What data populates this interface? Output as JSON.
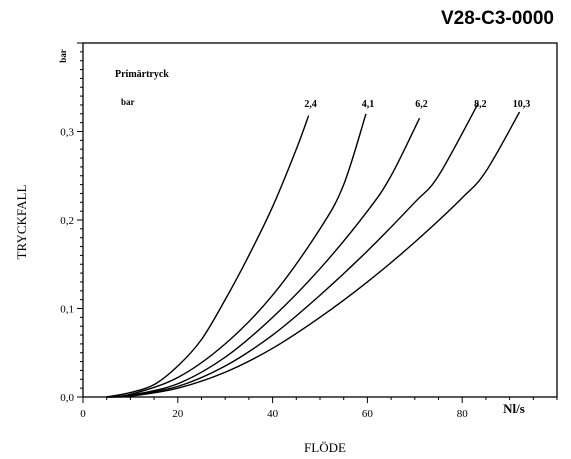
{
  "chart_data": {
    "type": "line",
    "code": "V28-C3-0000",
    "xlabel": "FLÖDE",
    "x_unit": "Nl/s",
    "ylabel": "TRYCKFALL",
    "y_unit": "bar",
    "legend_title": "Primärtryck",
    "legend_unit": "bar",
    "xlim": [
      0,
      100
    ],
    "ylim": [
      0,
      0.4
    ],
    "x_ticks": [
      0,
      20,
      40,
      60,
      80
    ],
    "x_tick_labels": [
      "0",
      "20",
      "40",
      "60",
      "80"
    ],
    "y_ticks": [
      0.0,
      0.1,
      0.2,
      0.3
    ],
    "y_tick_labels": [
      "0,0",
      "0,1",
      "0,2",
      "0,3"
    ],
    "grid": false,
    "series": [
      {
        "name": "2,4",
        "x": [
          5,
          10,
          15,
          20,
          25,
          30,
          35,
          40,
          45,
          47.6
        ],
        "y": [
          0,
          0.005,
          0.014,
          0.035,
          0.065,
          0.11,
          0.16,
          0.215,
          0.28,
          0.318
        ]
      },
      {
        "name": "4,1",
        "x": [
          5,
          10,
          20,
          30,
          40,
          50,
          55,
          59.7
        ],
        "y": [
          0,
          0.003,
          0.022,
          0.06,
          0.115,
          0.19,
          0.24,
          0.32
        ]
      },
      {
        "name": "6,2",
        "x": [
          5,
          10,
          20,
          30,
          40,
          50,
          60,
          65,
          71
        ],
        "y": [
          0,
          0.002,
          0.015,
          0.045,
          0.09,
          0.145,
          0.21,
          0.25,
          0.315
        ]
      },
      {
        "name": "8,2",
        "x": [
          5,
          10,
          20,
          30,
          40,
          50,
          60,
          70,
          75,
          83.4
        ],
        "y": [
          0,
          0.002,
          0.012,
          0.035,
          0.07,
          0.115,
          0.165,
          0.22,
          0.25,
          0.332
        ]
      },
      {
        "name": "10,3",
        "x": [
          5,
          10,
          20,
          30,
          40,
          50,
          60,
          70,
          80,
          85,
          92.1
        ],
        "y": [
          0,
          0.001,
          0.01,
          0.028,
          0.055,
          0.09,
          0.13,
          0.175,
          0.225,
          0.255,
          0.322
        ]
      }
    ]
  }
}
